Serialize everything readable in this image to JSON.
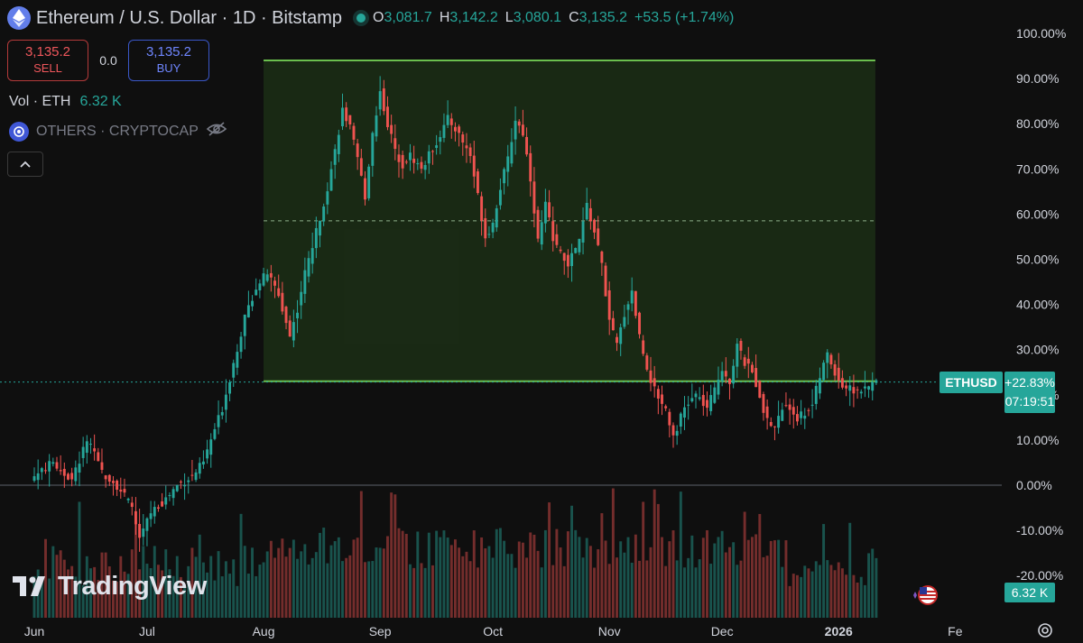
{
  "header": {
    "title": "Ethereum / U.S. Dollar · 1D · Bitstamp",
    "ohlc": [
      {
        "k": "O",
        "v": "3,081.7"
      },
      {
        "k": "H",
        "v": "3,142.2"
      },
      {
        "k": "L",
        "v": "3,080.1"
      },
      {
        "k": "C",
        "v": "3,135.2"
      }
    ],
    "change": "+53.5 (+1.74%)"
  },
  "trade": {
    "sell_price": "3,135.2",
    "sell_label": "SELL",
    "spread": "0.0",
    "buy_price": "3,135.2",
    "buy_label": "BUY"
  },
  "indicators": {
    "vol_label": "Vol · ETH",
    "vol_value": "6.32 K",
    "compare_label": "OTHERS · CRYPTOCAP"
  },
  "watermark": "TradingView",
  "tags": {
    "symbol": "ETHUSD",
    "pct": "+22.83%",
    "countdown": "07:19:51",
    "volume": "6.32 K"
  },
  "colors": {
    "background": "#0f0f0f",
    "up": "#26a69a",
    "down": "#ef5350",
    "range_line": "#6bbf4e",
    "range_fill": "#1d3317"
  },
  "chart_data": {
    "type": "candlestick",
    "symbol": "ETHUSD",
    "scale": "percent",
    "ylim": [
      -22,
      102
    ],
    "y_ticks": [
      "100.00%",
      "90.00%",
      "80.00%",
      "70.00%",
      "60.00%",
      "50.00%",
      "40.00%",
      "30.00%",
      "20.00%",
      "10.00%",
      "0.00%",
      "-10.00%",
      "-20.00%"
    ],
    "y_tick_values": [
      100,
      90,
      80,
      70,
      60,
      50,
      40,
      30,
      20,
      10,
      0,
      -10,
      -20
    ],
    "x_ticks": [
      "Jun",
      "Jul",
      "Aug",
      "Sep",
      "Oct",
      "Nov",
      "Dec",
      "2026",
      "Fe"
    ],
    "x_tick_days": [
      0,
      30,
      61,
      92,
      122,
      153,
      183,
      214,
      245
    ],
    "first_day": "Jun",
    "total_days": 255,
    "last_day": 224,
    "baseline": 0,
    "range_box": {
      "top": 94,
      "bottom": 23,
      "mid": 58.5,
      "start_day": 61,
      "end_day": 224
    },
    "current_pct": 22.83,
    "price_path": [
      [
        0,
        2
      ],
      [
        5,
        5
      ],
      [
        10,
        1
      ],
      [
        14,
        10
      ],
      [
        18,
        3
      ],
      [
        22,
        0
      ],
      [
        26,
        -5
      ],
      [
        28,
        -12
      ],
      [
        31,
        -6
      ],
      [
        35,
        -3
      ],
      [
        38,
        0
      ],
      [
        42,
        2
      ],
      [
        45,
        5
      ],
      [
        47,
        10
      ],
      [
        50,
        17
      ],
      [
        53,
        27
      ],
      [
        56,
        37
      ],
      [
        59,
        44
      ],
      [
        62,
        47
      ],
      [
        65,
        42
      ],
      [
        68,
        33
      ],
      [
        70,
        39
      ],
      [
        72,
        47
      ],
      [
        75,
        56
      ],
      [
        78,
        66
      ],
      [
        80,
        74
      ],
      [
        82,
        83
      ],
      [
        84,
        79
      ],
      [
        86,
        72
      ],
      [
        88,
        64
      ],
      [
        90,
        78
      ],
      [
        92,
        87
      ],
      [
        94,
        80
      ],
      [
        96,
        74
      ],
      [
        98,
        71
      ],
      [
        100,
        73
      ],
      [
        103,
        70
      ],
      [
        105,
        73
      ],
      [
        107,
        76
      ],
      [
        110,
        81
      ],
      [
        112,
        79
      ],
      [
        114,
        76
      ],
      [
        116,
        73
      ],
      [
        118,
        64
      ],
      [
        120,
        55
      ],
      [
        122,
        58
      ],
      [
        124,
        66
      ],
      [
        126,
        72
      ],
      [
        128,
        81
      ],
      [
        130,
        78
      ],
      [
        132,
        68
      ],
      [
        134,
        54
      ],
      [
        136,
        62
      ],
      [
        138,
        55
      ],
      [
        140,
        51
      ],
      [
        142,
        49
      ],
      [
        145,
        54
      ],
      [
        147,
        62
      ],
      [
        149,
        56
      ],
      [
        151,
        49
      ],
      [
        153,
        36
      ],
      [
        155,
        31
      ],
      [
        157,
        38
      ],
      [
        159,
        43
      ],
      [
        161,
        33
      ],
      [
        163,
        26
      ],
      [
        165,
        21
      ],
      [
        168,
        17
      ],
      [
        170,
        11
      ],
      [
        173,
        17
      ],
      [
        176,
        20
      ],
      [
        179,
        17
      ],
      [
        181,
        21
      ],
      [
        183,
        26
      ],
      [
        185,
        23
      ],
      [
        187,
        31
      ],
      [
        189,
        27
      ],
      [
        191,
        25
      ],
      [
        193,
        20
      ],
      [
        195,
        14
      ],
      [
        197,
        13
      ],
      [
        199,
        17
      ],
      [
        201,
        17
      ],
      [
        203,
        15
      ],
      [
        205,
        16
      ],
      [
        207,
        18
      ],
      [
        209,
        24
      ],
      [
        211,
        29
      ],
      [
        213,
        25
      ],
      [
        215,
        22
      ],
      [
        218,
        21
      ],
      [
        221,
        21
      ],
      [
        224,
        23
      ]
    ],
    "volume": {
      "visible_max": "6.32 K"
    }
  }
}
